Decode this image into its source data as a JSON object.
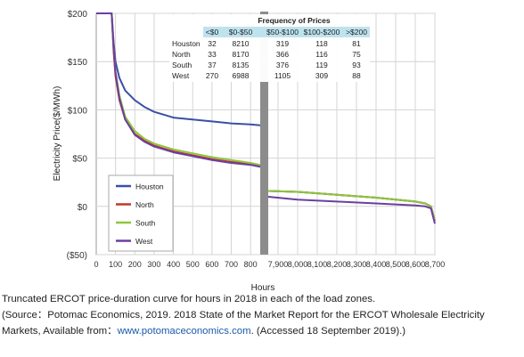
{
  "chart_data": {
    "type": "line",
    "xlabel": "Hours",
    "ylabel": "Electricity Price($/MWh)",
    "y_ticks": [
      "$200",
      "$150",
      "$100",
      "$50",
      "$0",
      "($50)"
    ],
    "y_values": [
      200,
      150,
      100,
      50,
      0,
      -50
    ],
    "ylim": [
      -50,
      200
    ],
    "x_ticks_left": [
      "0",
      "100",
      "200",
      "300",
      "400",
      "500",
      "600",
      "700",
      "800"
    ],
    "x_ticks_right": [
      "7,900",
      "8,000",
      "8,100",
      "8,200",
      "8,300",
      "8,400",
      "8,500",
      "8,600",
      "8,700"
    ],
    "axis_break": "between 850 and 7,850 hours",
    "legend_placement": "lower-left",
    "grid": true,
    "series": [
      {
        "name": "Houston",
        "color": "#3a4fa8",
        "x": [
          0,
          80,
          90,
          100,
          120,
          150,
          200,
          250,
          300,
          350,
          400,
          500,
          600,
          700,
          800,
          850,
          7850,
          8000,
          8200,
          8400,
          8600,
          8650,
          8680,
          8700
        ],
        "y": [
          200,
          200,
          170,
          150,
          133,
          120,
          110,
          103,
          98,
          95,
          92,
          90,
          88,
          86,
          85,
          84,
          16,
          15,
          12,
          9,
          5,
          3,
          0,
          -15
        ]
      },
      {
        "name": "North",
        "color": "#c0392b",
        "x": [
          0,
          80,
          90,
          100,
          120,
          150,
          200,
          250,
          300,
          350,
          400,
          500,
          600,
          700,
          800,
          850,
          7850,
          8000,
          8200,
          8400,
          8600,
          8650,
          8680,
          8700
        ],
        "y": [
          200,
          200,
          160,
          135,
          110,
          90,
          75,
          68,
          63,
          60,
          57,
          53,
          49,
          46,
          44,
          42,
          16,
          15,
          12,
          9,
          5,
          3,
          0,
          -15
        ]
      },
      {
        "name": "South",
        "color": "#8dc63f",
        "x": [
          0,
          80,
          90,
          100,
          120,
          150,
          200,
          250,
          300,
          350,
          400,
          500,
          600,
          700,
          800,
          850,
          7850,
          8000,
          8200,
          8400,
          8600,
          8650,
          8680,
          8700
        ],
        "y": [
          200,
          200,
          165,
          140,
          115,
          93,
          78,
          70,
          65,
          62,
          59,
          55,
          51,
          48,
          45,
          43,
          16,
          15,
          12,
          9,
          5,
          3,
          0,
          -15
        ]
      },
      {
        "name": "West",
        "color": "#6b3fa0",
        "x": [
          0,
          80,
          90,
          100,
          120,
          150,
          200,
          250,
          300,
          350,
          400,
          500,
          600,
          700,
          800,
          850,
          7850,
          8000,
          8200,
          8400,
          8600,
          8650,
          8680,
          8700
        ],
        "y": [
          200,
          200,
          165,
          138,
          112,
          90,
          74,
          67,
          62,
          59,
          56,
          52,
          48,
          45,
          43,
          41,
          10,
          7,
          5,
          3,
          1,
          0,
          -2,
          -18
        ]
      }
    ],
    "table": {
      "title": "Frequency of Prices",
      "columns": [
        "<$0",
        "$0-$50",
        "$50-$100",
        "$100-$200",
        ">$200"
      ],
      "rows": [
        {
          "zone": "Houston",
          "values": [
            "32",
            "8210",
            "319",
            "118",
            "81"
          ]
        },
        {
          "zone": "North",
          "values": [
            "33",
            "8170",
            "366",
            "116",
            "75"
          ]
        },
        {
          "zone": "South",
          "values": [
            "37",
            "8135",
            "376",
            "119",
            "93"
          ]
        },
        {
          "zone": "West",
          "values": [
            "270",
            "6988",
            "1105",
            "309",
            "88"
          ]
        }
      ]
    }
  },
  "caption": {
    "line1": "Truncated ERCOT price-duration curve for hours in 2018 in each of the load zones.",
    "line2": "(Source：Potomac Economics, 2019. 2018 State of the Market Report for the ERCOT Wholesale Electricity",
    "line3_prefix": "Markets, Available from：",
    "line3_link": "www.potomaceconomics.com",
    "line3_suffix": ". (Accessed 18 September 2019).)"
  }
}
